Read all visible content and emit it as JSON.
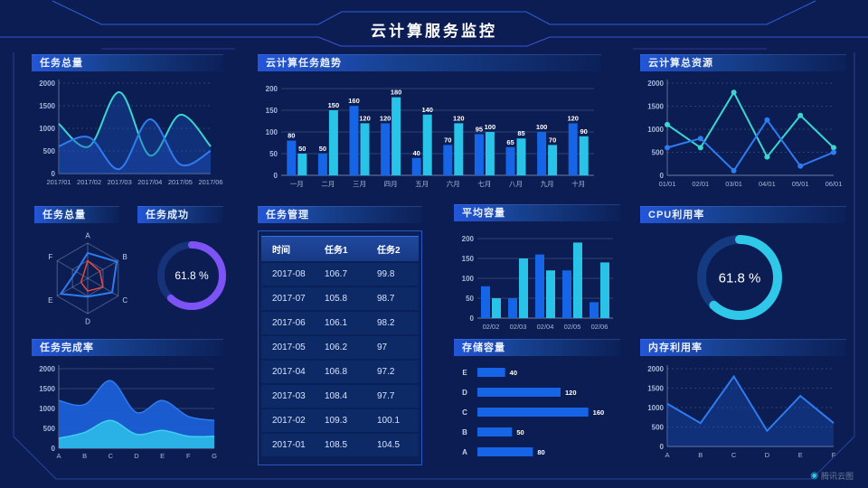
{
  "page": {
    "title": "云计算服务监控",
    "watermark": "腾讯云图"
  },
  "colors": {
    "background": "#0b1d52",
    "blue": "#1565e6",
    "cyan": "#28c3e6",
    "teal": "#3bd6ce",
    "purple": "#7d53f6",
    "red": "#e5493d",
    "axis_text": "#a9b8d8",
    "panel_title_accent": "#2356d8"
  },
  "chart_data": [
    {
      "id": "task-total-line",
      "type": "line",
      "title": "任务总量",
      "x": [
        "2017/01",
        "2017/02",
        "2017/03",
        "2017/04",
        "2017/05",
        "2017/06"
      ],
      "ylim": [
        0,
        2000
      ],
      "yticks": [
        0,
        500,
        1000,
        1500,
        2000
      ],
      "smooth": true,
      "markers": false,
      "grid": "dashed",
      "series": [
        {
          "name": "series-teal",
          "color": "#3bd6ce",
          "fill": true,
          "values": [
            1100,
            600,
            1800,
            400,
            1300,
            600
          ]
        },
        {
          "name": "series-blue",
          "color": "#2f7bf0",
          "fill": true,
          "values": [
            600,
            800,
            100,
            1200,
            200,
            500
          ]
        }
      ]
    },
    {
      "id": "task-trend-bars",
      "type": "bar",
      "title": "云计算任务趋势",
      "categories": [
        "一月",
        "二月",
        "三月",
        "四月",
        "五月",
        "六月",
        "七月",
        "八月",
        "九月",
        "十月"
      ],
      "ylim": [
        0,
        200
      ],
      "yticks": [
        0,
        50,
        100,
        150,
        200
      ],
      "show_labels": true,
      "series": [
        {
          "name": "series-blue",
          "color": "#1565e6",
          "values": [
            80,
            50,
            160,
            120,
            40,
            70,
            95,
            65,
            100,
            120
          ]
        },
        {
          "name": "series-cyan",
          "color": "#28c3e6",
          "values": [
            50,
            150,
            120,
            180,
            140,
            120,
            100,
            85,
            70,
            90
          ]
        }
      ]
    },
    {
      "id": "cloud-resource-line",
      "type": "line",
      "title": "云计算总资源",
      "x": [
        "01/01",
        "02/01",
        "03/01",
        "04/01",
        "05/01",
        "06/01"
      ],
      "ylim": [
        0,
        2000
      ],
      "yticks": [
        0,
        500,
        1000,
        1500,
        2000
      ],
      "smooth": false,
      "markers": true,
      "grid": "dashed",
      "series": [
        {
          "name": "series-teal",
          "color": "#3bd6ce",
          "values": [
            1100,
            600,
            1800,
            400,
            1300,
            600
          ]
        },
        {
          "name": "series-blue",
          "color": "#2f7bf0",
          "values": [
            600,
            800,
            100,
            1200,
            200,
            500
          ]
        }
      ]
    },
    {
      "id": "task-total-radar",
      "type": "radar",
      "title": "任务总量",
      "axes": [
        "A",
        "B",
        "C",
        "D",
        "E",
        "F"
      ],
      "max": 100,
      "series": [
        {
          "name": "series-blue",
          "color": "#2f7bf0",
          "values": [
            72,
            95,
            80,
            52,
            88,
            38
          ]
        },
        {
          "name": "series-red",
          "color": "#e5493d",
          "values": [
            50,
            40,
            50,
            36,
            22,
            15
          ]
        }
      ]
    },
    {
      "id": "task-success-donut",
      "type": "donut",
      "title": "任务成功",
      "value": 61.8,
      "label": "61.8 %",
      "color": "#7d53f6",
      "track": "#16337a"
    },
    {
      "id": "task-table",
      "type": "table",
      "title": "任务管理",
      "columns": [
        "时间",
        "任务1",
        "任务2"
      ],
      "rows": [
        [
          "2017-08",
          "106.7",
          "99.8"
        ],
        [
          "2017-07",
          "105.8",
          "98.7"
        ],
        [
          "2017-06",
          "106.1",
          "98.2"
        ],
        [
          "2017-05",
          "106.2",
          "97"
        ],
        [
          "2017-04",
          "106.8",
          "97.2"
        ],
        [
          "2017-03",
          "108.4",
          "97.7"
        ],
        [
          "2017-02",
          "109.3",
          "100.1"
        ],
        [
          "2017-01",
          "108.5",
          "104.5"
        ]
      ]
    },
    {
      "id": "avg-capacity-bars",
      "type": "bar",
      "title": "平均容量",
      "categories": [
        "02/02",
        "02/03",
        "02/04",
        "02/05",
        "02/06"
      ],
      "ylim": [
        0,
        200
      ],
      "yticks": [
        0,
        50,
        100,
        150,
        200
      ],
      "show_labels": false,
      "series": [
        {
          "name": "series-blue",
          "color": "#1565e6",
          "values": [
            80,
            50,
            160,
            120,
            40
          ]
        },
        {
          "name": "series-cyan",
          "color": "#28c3e6",
          "values": [
            50,
            150,
            120,
            190,
            140
          ]
        }
      ]
    },
    {
      "id": "cpu-donut",
      "type": "donut",
      "title": "CPU利用率",
      "value": 61.8,
      "label": "61.8 %",
      "color": "#2fc8e8",
      "track": "#143a80"
    },
    {
      "id": "task-completion-area",
      "type": "area",
      "title": "任务完成率",
      "x": [
        "A",
        "B",
        "C",
        "D",
        "E",
        "F",
        "G"
      ],
      "ylim": [
        0,
        2000
      ],
      "yticks": [
        0,
        500,
        1000,
        1500,
        2000
      ],
      "series": [
        {
          "name": "series-blue",
          "color": "#1b5fd6",
          "stroke": "#2f7bf0",
          "values": [
            1200,
            1100,
            1700,
            900,
            1200,
            800,
            700
          ]
        },
        {
          "name": "series-cyan",
          "color": "#2bb7e8",
          "stroke": "#3fd0f0",
          "values": [
            250,
            400,
            700,
            350,
            450,
            300,
            300
          ]
        }
      ]
    },
    {
      "id": "storage-hbar",
      "type": "hbar",
      "title": "存储容量",
      "categories": [
        "E",
        "D",
        "C",
        "B",
        "A"
      ],
      "values": [
        40,
        120,
        160,
        50,
        80
      ],
      "xmax": 180,
      "color": "#1565e6"
    },
    {
      "id": "memory-line",
      "type": "line",
      "title": "内存利用率",
      "x": [
        "A",
        "B",
        "C",
        "D",
        "E",
        "F"
      ],
      "ylim": [
        0,
        2000
      ],
      "yticks": [
        0,
        500,
        1000,
        1500,
        2000
      ],
      "smooth": false,
      "markers": false,
      "grid": "dashed",
      "series": [
        {
          "name": "series-blue",
          "color": "#2f7bf0",
          "fill": true,
          "values": [
            1100,
            600,
            1800,
            400,
            1300,
            600
          ]
        }
      ]
    }
  ]
}
